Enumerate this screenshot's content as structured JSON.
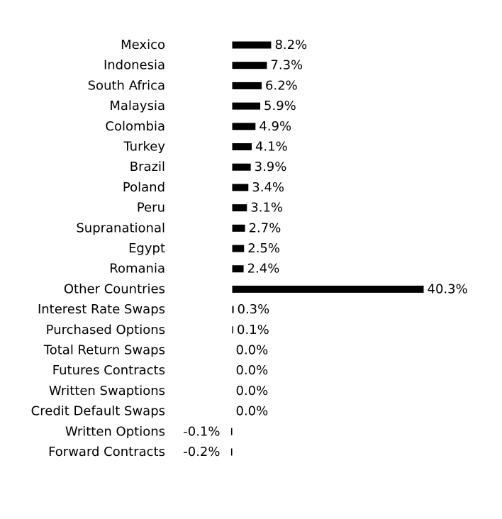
{
  "chart_data": {
    "type": "bar",
    "orientation": "horizontal",
    "title": "",
    "xlabel": "",
    "ylabel": "",
    "bar_color": "#000000",
    "grid": false,
    "categories": [
      "Mexico",
      "Indonesia",
      "South Africa",
      "Malaysia",
      "Colombia",
      "Turkey",
      "Brazil",
      "Poland",
      "Peru",
      "Supranational",
      "Egypt",
      "Romania",
      "Other Countries",
      "Interest Rate Swaps",
      "Purchased Options",
      "Total Return Swaps",
      "Futures Contracts",
      "Written Swaptions",
      "Credit Default Swaps",
      "Written Options",
      "Forward Contracts"
    ],
    "values": [
      8.2,
      7.3,
      6.2,
      5.9,
      4.9,
      4.1,
      3.9,
      3.4,
      3.1,
      2.7,
      2.5,
      2.4,
      40.3,
      0.3,
      0.1,
      0.0,
      0.0,
      0.0,
      0.0,
      -0.1,
      -0.2
    ],
    "value_labels": [
      "8.2%",
      "7.3%",
      "6.2%",
      "5.9%",
      "4.9%",
      "4.1%",
      "3.9%",
      "3.4%",
      "3.1%",
      "2.7%",
      "2.5%",
      "2.4%",
      "40.3%",
      "0.3%",
      "0.1%",
      "0.0%",
      "0.0%",
      "0.0%",
      "0.0%",
      "-0.1%",
      "-0.2%"
    ]
  }
}
